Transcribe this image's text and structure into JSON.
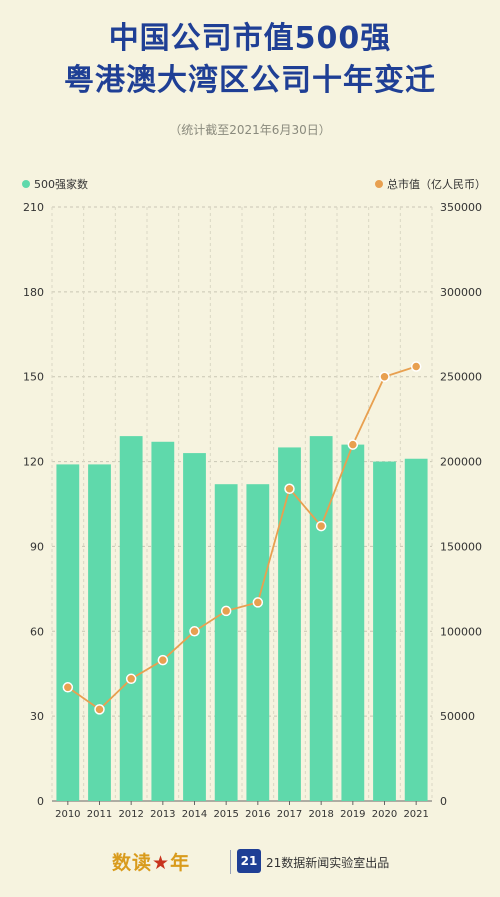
{
  "title": {
    "line1": "中国公司市值500强",
    "line2": "粤港澳大湾区公司十年变迁"
  },
  "subtitle": "（统计截至2021年6月30日）",
  "legend": {
    "left_label": "500强家数",
    "right_label": "总市值（亿人民币）"
  },
  "colors": {
    "bar": "#5fd9ab",
    "line": "#e8a050",
    "title": "#1f3f95",
    "background": "#f6f3df"
  },
  "chart_data": {
    "type": "bar",
    "categories": [
      "2010",
      "2011",
      "2012",
      "2013",
      "2014",
      "2015",
      "2016",
      "2017",
      "2018",
      "2019",
      "2020",
      "2021"
    ],
    "series": [
      {
        "name": "500强家数",
        "type": "bar",
        "axis": "left",
        "values": [
          119,
          119,
          129,
          127,
          123,
          112,
          112,
          125,
          129,
          126,
          120,
          121
        ]
      },
      {
        "name": "总市值（亿人民币）",
        "type": "line",
        "axis": "right",
        "values": [
          67000,
          54000,
          72000,
          83000,
          100000,
          112000,
          117000,
          184000,
          162000,
          210000,
          250000,
          256000
        ]
      }
    ],
    "ylim_left": [
      0,
      210
    ],
    "yticks_left": [
      0,
      30,
      60,
      90,
      120,
      150,
      180,
      210
    ],
    "ylim_right": [
      0,
      350000
    ],
    "yticks_right": [
      0,
      50000,
      100000,
      150000,
      200000,
      250000,
      300000,
      350000
    ],
    "grid": true,
    "legend_placement": "top"
  },
  "footer": {
    "brand_prefix": "数读",
    "brand_mid": "★",
    "brand_suffix": "年",
    "badge": "21",
    "lab_text": "21数据新闻实验室出品"
  }
}
